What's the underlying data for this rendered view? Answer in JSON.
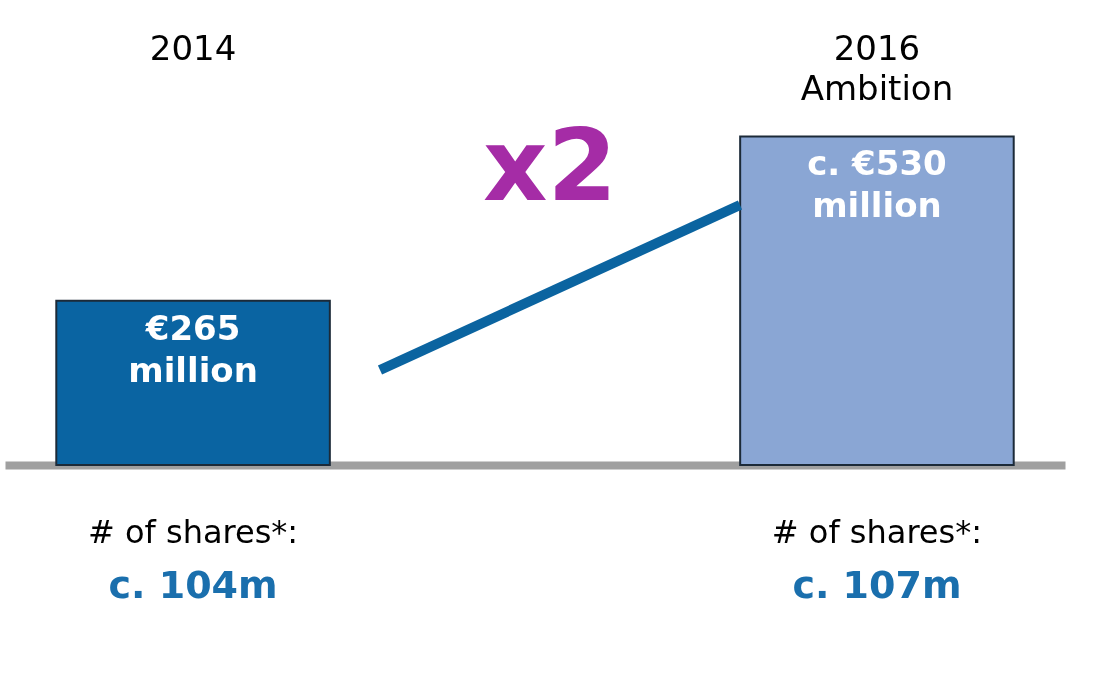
{
  "chart_data": {
    "type": "bar",
    "categories": [
      "2014",
      "2016 Ambition"
    ],
    "values": [
      265,
      530
    ],
    "colors": [
      "#0a64a2",
      "#8aa6d4"
    ],
    "value_labels": [
      "€265 million",
      "c. €530 million"
    ],
    "annotations": [
      "x2",
      "# of shares*:",
      "c. 104m",
      "# of shares*:",
      "c. 107m"
    ],
    "orientation": "vertical"
  }
}
